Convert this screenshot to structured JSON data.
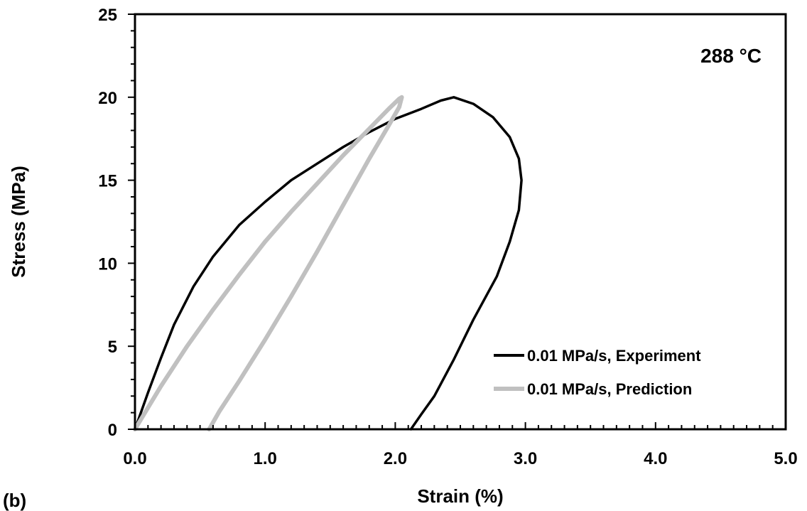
{
  "chart_data": {
    "type": "line",
    "title": "",
    "annotation": "288 °C",
    "panel_label": "(b)",
    "xlabel": "Strain (%)",
    "ylabel": "Stress (MPa)",
    "xlim": [
      0,
      5
    ],
    "ylim": [
      0,
      25
    ],
    "x_ticks": [
      "0.0",
      "1.0",
      "2.0",
      "3.0",
      "4.0",
      "5.0"
    ],
    "x_tick_values": [
      0,
      1,
      2,
      3,
      4,
      5
    ],
    "y_ticks": [
      "0",
      "5",
      "10",
      "15",
      "20",
      "25"
    ],
    "y_tick_values": [
      0,
      5,
      10,
      15,
      20,
      25
    ],
    "grid": false,
    "legend_position": "bottom-right",
    "series": [
      {
        "name": "0.01 MPa/s, Experiment",
        "color": "#000000",
        "x": [
          0.0,
          0.1,
          0.2,
          0.3,
          0.45,
          0.6,
          0.8,
          1.0,
          1.2,
          1.4,
          1.6,
          1.8,
          2.0,
          2.2,
          2.35,
          2.45,
          2.6,
          2.75,
          2.88,
          2.95,
          2.97,
          2.95,
          2.88,
          2.78,
          2.6,
          2.45,
          2.3,
          2.2,
          2.12
        ],
        "y": [
          0.0,
          2.2,
          4.3,
          6.3,
          8.6,
          10.4,
          12.3,
          13.7,
          15.0,
          16.0,
          17.0,
          17.9,
          18.7,
          19.3,
          19.8,
          20.0,
          19.6,
          18.8,
          17.6,
          16.3,
          15.0,
          13.2,
          11.3,
          9.2,
          6.6,
          4.2,
          2.0,
          0.9,
          0.0
        ]
      },
      {
        "name": "0.01 MPa/s, Prediction",
        "color": "#c0c0c0",
        "x": [
          0.0,
          0.2,
          0.4,
          0.6,
          0.8,
          1.0,
          1.2,
          1.4,
          1.6,
          1.8,
          1.95,
          2.03,
          2.05,
          2.03,
          1.95,
          1.8,
          1.6,
          1.4,
          1.2,
          1.0,
          0.8,
          0.65,
          0.57
        ],
        "y": [
          0.0,
          2.6,
          5.0,
          7.2,
          9.3,
          11.3,
          13.1,
          14.8,
          16.5,
          18.1,
          19.3,
          19.9,
          20.0,
          19.4,
          18.3,
          16.3,
          13.5,
          10.7,
          8.0,
          5.4,
          2.9,
          1.1,
          0.0
        ]
      }
    ]
  }
}
